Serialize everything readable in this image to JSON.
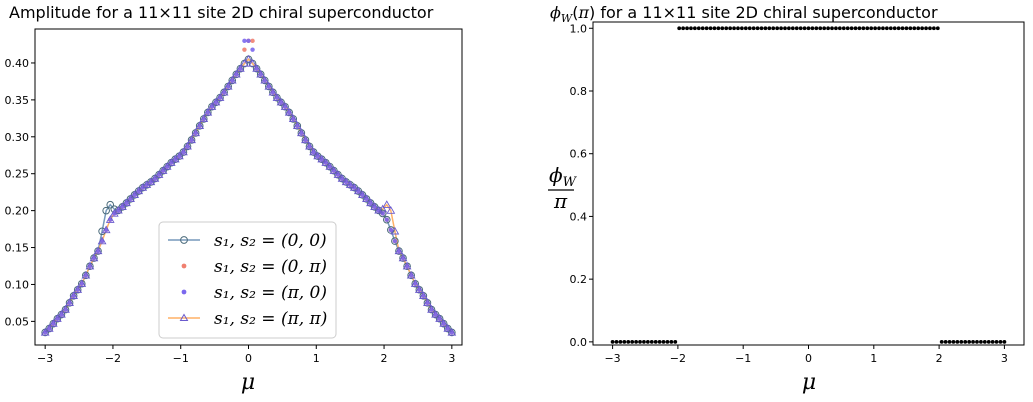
{
  "chart_data": [
    {
      "type": "line",
      "title": "Amplitude for a 11×11 site 2D chiral superconductor",
      "xlabel": "μ",
      "ylabel": "",
      "xlim": [
        -3.15,
        3.15
      ],
      "ylim": [
        0.018,
        0.446
      ],
      "xticks": [
        -3,
        -2,
        -1,
        0,
        1,
        2,
        3
      ],
      "xtick_labels": [
        "−3",
        "−2",
        "−1",
        "0",
        "1",
        "2",
        "3"
      ],
      "yticks": [
        0.05,
        0.1,
        0.15,
        0.2,
        0.25,
        0.3,
        0.35,
        0.4
      ],
      "ytick_labels": [
        "0.05",
        "0.10",
        "0.15",
        "0.20",
        "0.25",
        "0.30",
        "0.35",
        "0.40"
      ],
      "legend_position": "lower-center",
      "grid": false,
      "x_range": [
        -3.0,
        3.0
      ],
      "n_points": 101,
      "series": [
        {
          "name": "s₁, s₂ = (0, 0)",
          "marker": "open-circle",
          "color": "#7799bb",
          "line": true,
          "deviations": [
            {
              "x": -2.16,
              "y": 0.172
            },
            {
              "x": -2.1,
              "y": 0.2
            },
            {
              "x": -2.04,
              "y": 0.208
            },
            {
              "x": -1.98,
              "y": 0.202
            }
          ]
        },
        {
          "name": "s₁, s₂ = (0, π)",
          "marker": "dot",
          "color": "#f08070",
          "line": false,
          "deviations": [
            {
              "x": 0.0,
              "y": 0.43
            },
            {
              "x": 0.06,
              "y": 0.43
            },
            {
              "x": -0.06,
              "y": 0.418
            }
          ]
        },
        {
          "name": "s₁, s₂ = (π, 0)",
          "marker": "dot",
          "color": "#7b68ee",
          "line": false,
          "deviations": [
            {
              "x": 0.0,
              "y": 0.43
            },
            {
              "x": -0.06,
              "y": 0.43
            },
            {
              "x": 0.06,
              "y": 0.418
            }
          ]
        },
        {
          "name": "s₁, s₂ = (π, π)",
          "marker": "open-triangle",
          "color": "#ffb066",
          "line": true,
          "deviations": [
            {
              "x": 1.98,
              "y": 0.202
            },
            {
              "x": 2.04,
              "y": 0.208
            },
            {
              "x": 2.1,
              "y": 0.2
            },
            {
              "x": 2.16,
              "y": 0.172
            }
          ]
        }
      ]
    },
    {
      "type": "scatter",
      "title": "φW(π) for a 11×11 site 2D chiral superconductor",
      "xlabel": "μ",
      "ylabel": "φW / π",
      "xlim": [
        -3.3,
        3.3
      ],
      "ylim": [
        -0.01,
        1.02
      ],
      "xticks": [
        -3,
        -2,
        -1,
        0,
        1,
        2,
        3
      ],
      "xtick_labels": [
        "−3",
        "−2",
        "−1",
        "0",
        "1",
        "2",
        "3"
      ],
      "yticks": [
        0.0,
        0.2,
        0.4,
        0.6,
        0.8,
        1.0
      ],
      "ytick_labels": [
        "0.0",
        "0.2",
        "0.4",
        "0.6",
        "0.8",
        "1.0"
      ],
      "grid": false,
      "x_range": [
        -3.0,
        3.0
      ],
      "n_points": 101,
      "value_outside_band": 0.0,
      "value_inside_band": 1.0,
      "band": [
        -2.0,
        2.0
      ]
    }
  ]
}
